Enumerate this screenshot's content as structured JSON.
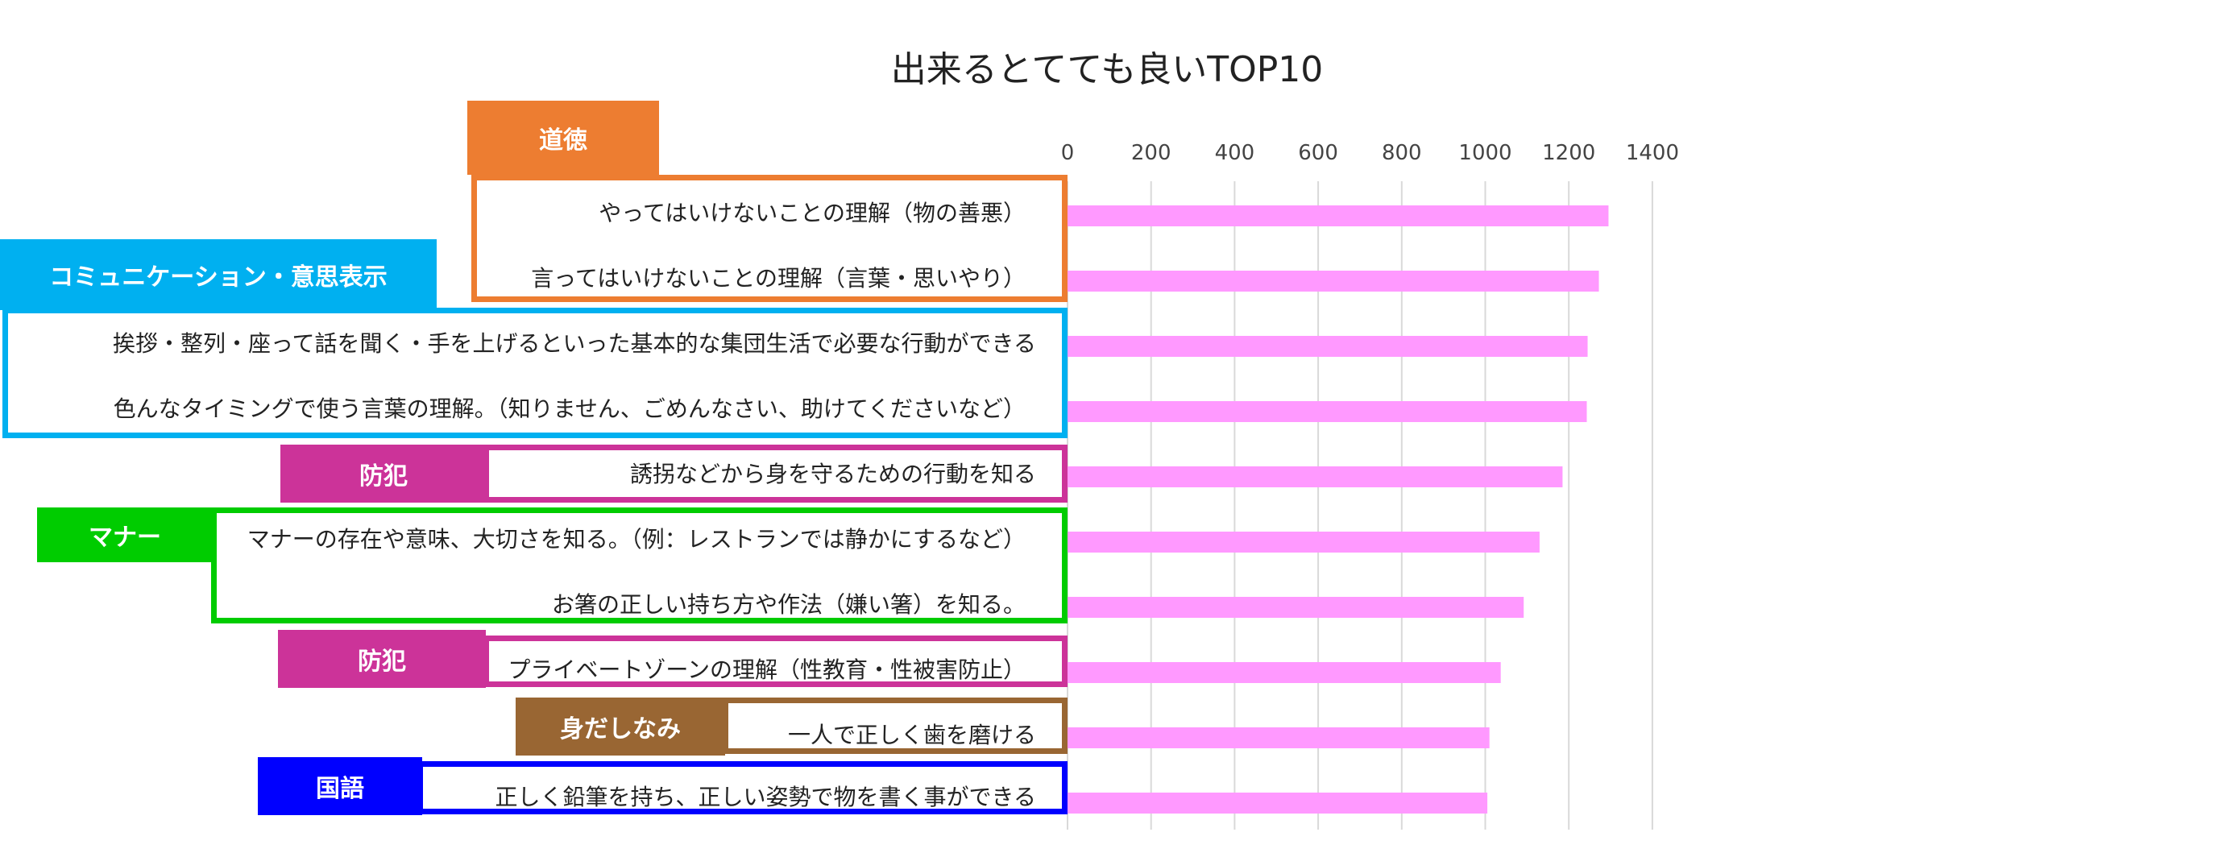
{
  "chart_data": {
    "type": "bar",
    "orientation": "horizontal",
    "title": "出来るとてても良いTOP10",
    "xlim": [
      0,
      1400
    ],
    "x_ticks": [
      "0",
      "200",
      "400",
      "600",
      "800",
      "1000",
      "1200",
      "1400"
    ],
    "grid": true,
    "bar_color": "#FF99FF",
    "categories": [
      "やってはいけないことの理解（物の善悪）",
      "言ってはいけないことの理解（言葉・思いやり）",
      "挨拶・整列・座って話を聞く・手を上げるといった基本的な集団生活で必要な行動ができる",
      "色んなタイミングで使う言葉の理解。（知りません、ごめんなさい、助けてくださいなど）",
      "誘拐などから身を守るための行動を知る",
      "マナーの存在や意味、大切さを知る。（例：レストランでは静かにするなど）",
      "お箸の正しい持ち方や作法（嫌い箸）を知る。",
      "プライベートゾーンの理解（性教育・性被害防止）",
      "一人で正しく歯を磨ける",
      "正しく鉛筆を持ち、正しい姿勢で物を書く事ができる"
    ],
    "values": [
      1295,
      1272,
      1245,
      1243,
      1185,
      1130,
      1092,
      1037,
      1010,
      1005
    ]
  },
  "groups": [
    {
      "tag": "道徳",
      "color": "#ED7D31"
    },
    {
      "tag": "コミュニケーション・意思表示",
      "color": "#00B0F0"
    },
    {
      "tag": "防犯",
      "color": "#CC3399"
    },
    {
      "tag": "マナー",
      "color": "#00CC00"
    },
    {
      "tag": "防犯",
      "color": "#CC3399"
    },
    {
      "tag": "身だしなみ",
      "color": "#996633"
    },
    {
      "tag": "国語",
      "color": "#0000FF"
    }
  ]
}
